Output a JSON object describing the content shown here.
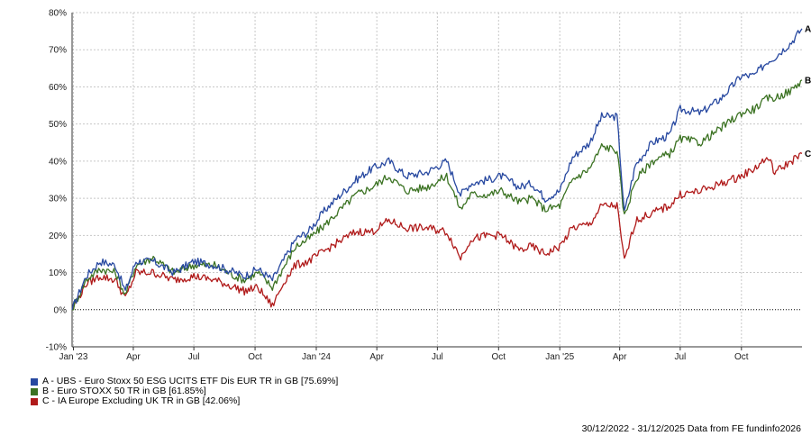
{
  "chart_data": {
    "type": "line",
    "title": "",
    "xlabel": "",
    "ylabel": "",
    "ylim": [
      -10,
      80
    ],
    "yticks": [
      "-10%",
      "0%",
      "10%",
      "20%",
      "30%",
      "40%",
      "50%",
      "60%",
      "70%",
      "80%"
    ],
    "xticks": [
      {
        "label": "Jan '23",
        "date": "2023-01-01"
      },
      {
        "label": "Apr",
        "date": "2023-04-01"
      },
      {
        "label": "Jul",
        "date": "2023-07-01"
      },
      {
        "label": "Oct",
        "date": "2023-10-01"
      },
      {
        "label": "Jan '24",
        "date": "2024-01-01"
      },
      {
        "label": "Apr",
        "date": "2024-04-01"
      },
      {
        "label": "Jul",
        "date": "2024-07-01"
      },
      {
        "label": "Oct",
        "date": "2024-10-01"
      },
      {
        "label": "Jan '25",
        "date": "2025-01-01"
      },
      {
        "label": "Apr",
        "date": "2025-04-01"
      },
      {
        "label": "Jul",
        "date": "2025-07-01"
      },
      {
        "label": "Oct",
        "date": "2025-10-01"
      }
    ],
    "xrange": [
      "2022-12-30",
      "2025-12-31"
    ],
    "grid": true,
    "legend_position": "bottom-left",
    "dates": [
      "2022-12-30",
      "2023-01-20",
      "2023-02-10",
      "2023-03-05",
      "2023-03-20",
      "2023-04-05",
      "2023-05-01",
      "2023-06-01",
      "2023-07-01",
      "2023-08-01",
      "2023-09-01",
      "2023-09-15",
      "2023-10-05",
      "2023-10-27",
      "2023-11-15",
      "2023-12-01",
      "2023-12-20",
      "2024-01-15",
      "2024-02-01",
      "2024-03-01",
      "2024-03-25",
      "2024-04-19",
      "2024-05-15",
      "2024-06-15",
      "2024-07-15",
      "2024-08-05",
      "2024-08-20",
      "2024-09-15",
      "2024-10-05",
      "2024-11-01",
      "2024-11-20",
      "2024-12-10",
      "2025-01-01",
      "2025-01-20",
      "2025-02-15",
      "2025-03-05",
      "2025-03-28",
      "2025-04-08",
      "2025-04-25",
      "2025-05-20",
      "2025-06-15",
      "2025-07-01",
      "2025-08-01",
      "2025-09-01",
      "2025-10-01",
      "2025-10-20",
      "2025-11-10",
      "2025-11-20",
      "2025-12-15",
      "2025-12-31"
    ],
    "series": [
      {
        "name": "A - UBS - Euro Stoxx 50 ESG UCITS ETF Dis EUR TR in GB [75.69%]",
        "label": "A",
        "color": "#2748a0",
        "values": [
          0,
          9,
          13,
          12,
          5,
          13,
          13,
          10,
          13,
          12,
          10,
          9,
          11,
          8,
          14,
          19,
          21,
          27,
          30,
          35,
          38,
          40,
          36,
          37,
          40,
          31,
          34,
          35,
          36,
          33,
          34,
          30,
          32,
          41,
          45,
          52,
          52,
          26,
          39,
          45,
          47,
          54,
          53,
          57,
          63,
          63,
          67,
          68,
          72,
          75.69
        ]
      },
      {
        "name": "B - Euro STOXX 50 TR in GB [61.85%]",
        "label": "B",
        "color": "#3b7222",
        "values": [
          0,
          8,
          11,
          10,
          4,
          12,
          14,
          10,
          12,
          12,
          9,
          8,
          10,
          6,
          12,
          17,
          19,
          23,
          26,
          31,
          33,
          36,
          32,
          33,
          36,
          27,
          31,
          31,
          32,
          29,
          30,
          27,
          28,
          35,
          38,
          44,
          43,
          25,
          35,
          40,
          42,
          46,
          45,
          49,
          53,
          54,
          57,
          57,
          59,
          61.85
        ]
      },
      {
        "name": "C - IA Europe Excluding UK TR in GB [42.06%]",
        "label": "C",
        "color": "#b01a1a",
        "values": [
          0,
          7,
          9,
          8,
          3,
          10,
          10,
          8,
          9,
          8,
          6,
          5,
          6,
          1,
          8,
          12,
          13,
          16,
          18,
          21,
          21,
          24,
          22,
          22,
          21,
          14,
          19,
          20,
          20,
          16,
          17,
          15,
          17,
          22,
          23,
          28,
          28,
          13,
          24,
          26,
          28,
          31,
          32,
          34,
          36,
          38,
          41,
          37,
          40,
          42.06
        ]
      }
    ]
  },
  "legend": {
    "items": [
      {
        "text": "A - UBS - Euro Stoxx 50 ESG UCITS ETF Dis EUR TR in GB [75.69%]",
        "color": "#2748a0"
      },
      {
        "text": "B - Euro STOXX 50 TR in GB [61.85%]",
        "color": "#3b7222"
      },
      {
        "text": "C - IA Europe Excluding UK TR in GB [42.06%]",
        "color": "#b01a1a"
      }
    ]
  },
  "footer": {
    "text": "30/12/2022 - 31/12/2025 Data from FE fundinfo2026"
  }
}
